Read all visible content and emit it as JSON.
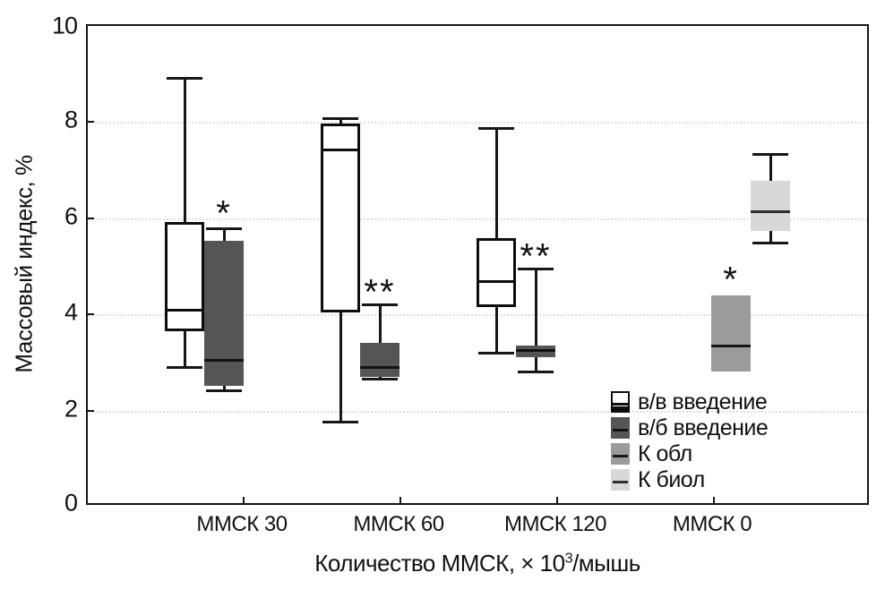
{
  "figure": {
    "y_axis": {
      "title": "Массовый индекс, %",
      "tick_labels": [
        "0",
        "2",
        "4",
        "6",
        "8",
        "10"
      ]
    },
    "x_axis": {
      "title_prefix": "Количество ММСК, × 10",
      "title_sup": "3",
      "title_suffix": "/мышь",
      "category_labels": [
        "ММСК 30",
        "ММСК 60",
        "ММСК 120",
        "ММСК 0"
      ]
    },
    "legend_labels": [
      "в/в введение",
      "в/б введение",
      "К обл",
      "К биол"
    ]
  },
  "chart_data": {
    "type": "boxplot",
    "title": "",
    "ylabel": "Массовый индекс, %",
    "xlabel": "Количество ММСК, × 10³/мышь",
    "ylim": [
      0,
      10
    ],
    "yticks": [
      0,
      2,
      4,
      6,
      8,
      10
    ],
    "grid": "dotted horizontal at 2,4,6,8",
    "legend_position": "inside lower right",
    "categories": [
      "ММСК 30",
      "ММСК 60",
      "ММСК 120",
      "ММСК 0"
    ],
    "series": [
      {
        "name": "в/в введение",
        "fill": "#ffffff",
        "border": "#0d0d0d",
        "median_color": "#0d0d0d"
      },
      {
        "name": "в/б введение",
        "fill": "#555555",
        "border": "#555555",
        "median_color": "#111111"
      },
      {
        "name": "К обл",
        "fill": "#9b9b9b",
        "border": "#9b9b9b",
        "median_color": "#161616"
      },
      {
        "name": "К биол",
        "fill": "#d8d8d8",
        "border": "#d8d8d8",
        "median_color": "#2f2f2f"
      }
    ],
    "boxes": [
      {
        "category": "ММСК 30",
        "series": 0,
        "low": 2.85,
        "q1": 3.6,
        "median": 4.05,
        "q3": 5.9,
        "high": 8.9,
        "label": "",
        "label_y": null
      },
      {
        "category": "ММСК 30",
        "series": 1,
        "low": 2.35,
        "q1": 2.45,
        "median": 3.0,
        "q3": 5.5,
        "high": 5.75,
        "label": "*",
        "label_y": 6.1
      },
      {
        "category": "ММСК 60",
        "series": 0,
        "low": 1.7,
        "q1": 4.0,
        "median": 7.4,
        "q3": 7.95,
        "high": 8.05,
        "label": "",
        "label_y": null
      },
      {
        "category": "ММСК 60",
        "series": 1,
        "low": 2.6,
        "q1": 2.65,
        "median": 2.85,
        "q3": 3.35,
        "high": 4.15,
        "label": "**",
        "label_y": 4.45
      },
      {
        "category": "ММСК 120",
        "series": 0,
        "low": 3.15,
        "q1": 4.1,
        "median": 4.65,
        "q3": 5.55,
        "high": 7.85,
        "label": "",
        "label_y": null
      },
      {
        "category": "ММСК 120",
        "series": 1,
        "low": 2.75,
        "q1": 3.05,
        "median": 3.2,
        "q3": 3.3,
        "high": 4.9,
        "label": "**",
        "label_y": 5.2
      },
      {
        "category": "ММСК 0",
        "series": 2,
        "low": null,
        "q1": 2.75,
        "median": 3.3,
        "q3": 4.35,
        "high": null,
        "label": "*",
        "label_y": 4.7
      },
      {
        "category": "ММСК 0",
        "series": 3,
        "low": 5.45,
        "q1": 5.7,
        "median": 6.1,
        "q3": 6.75,
        "high": 7.3,
        "label": "",
        "label_y": null
      }
    ]
  }
}
